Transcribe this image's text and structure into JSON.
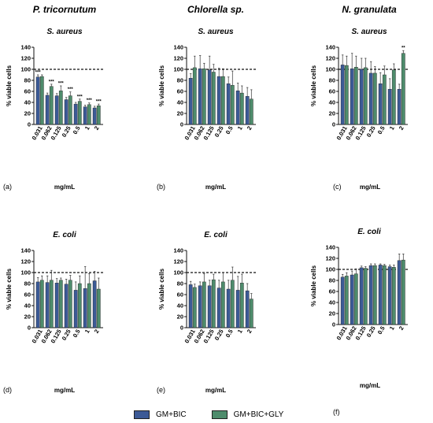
{
  "column_titles": [
    "P. tricornutum",
    "Chlorella sp.",
    "N. granulata"
  ],
  "legend": [
    {
      "label": "GM+BIC",
      "color": "#3c5a96"
    },
    {
      "label": "GM+BIC+GLY",
      "color": "#4e8c6c"
    }
  ],
  "chart_data": [
    {
      "type": "bar",
      "panel_label": "(a)",
      "subtitle": "S. aureus",
      "xlabel": "mg/mL",
      "ylabel": "% viable cells",
      "ylim": [
        0,
        140
      ],
      "yticks": [
        0,
        20,
        40,
        60,
        80,
        100,
        120,
        140
      ],
      "reference_line": 100,
      "categories": [
        "0.031",
        "0.062",
        "0.125",
        "0.25",
        "0.5",
        "1",
        "2"
      ],
      "series": [
        {
          "name": "GM+BIC",
          "values": [
            86,
            53,
            52,
            45,
            37,
            32,
            30
          ],
          "errors": [
            4,
            4,
            4,
            4,
            3,
            3,
            3
          ]
        },
        {
          "name": "GM+BIC+GLY",
          "values": [
            87,
            69,
            61,
            52,
            42,
            36,
            34
          ],
          "errors": [
            3,
            4,
            9,
            7,
            4,
            3,
            3
          ]
        }
      ],
      "significance": [
        {
          "series": "GM+BIC",
          "index": 0,
          "mark": "***"
        },
        {
          "series": "GM+BIC+GLY",
          "index": 1,
          "mark": "***"
        },
        {
          "series": "GM+BIC+GLY",
          "index": 2,
          "mark": "***"
        },
        {
          "series": "GM+BIC+GLY",
          "index": 3,
          "mark": "***"
        },
        {
          "series": "GM+BIC+GLY",
          "index": 4,
          "mark": "***"
        },
        {
          "series": "GM+BIC+GLY",
          "index": 5,
          "mark": "***"
        },
        {
          "series": "GM+BIC+GLY",
          "index": 6,
          "mark": "***"
        }
      ]
    },
    {
      "type": "bar",
      "panel_label": "(b)",
      "subtitle": "S. aureus",
      "xlabel": "mg/mL",
      "ylabel": "% viable cells",
      "ylim": [
        0,
        140
      ],
      "yticks": [
        0,
        20,
        40,
        60,
        80,
        100,
        120,
        140
      ],
      "reference_line": 100,
      "categories": [
        "0.031",
        "0.062",
        "0.125",
        "0.25",
        "0.5",
        "1",
        "2"
      ],
      "series": [
        {
          "name": "GM+BIC",
          "values": [
            84,
            101,
            99,
            87,
            74,
            61,
            51
          ],
          "errors": [
            8,
            24,
            25,
            15,
            12,
            14,
            16
          ]
        },
        {
          "name": "GM+BIC+GLY",
          "values": [
            103,
            101,
            95,
            87,
            71,
            57,
            46
          ],
          "errors": [
            21,
            10,
            14,
            14,
            26,
            13,
            17
          ]
        }
      ],
      "significance": []
    },
    {
      "type": "bar",
      "panel_label": "(c)",
      "subtitle": "S. aureus",
      "xlabel": "mg/mL",
      "ylabel": "% viable cells",
      "ylim": [
        0,
        140
      ],
      "yticks": [
        0,
        20,
        40,
        60,
        80,
        100,
        120,
        140
      ],
      "reference_line": 100,
      "categories": [
        "0.031",
        "0.062",
        "0.125",
        "0.25",
        "0.5",
        "1",
        "2"
      ],
      "series": [
        {
          "name": "GM+BIC",
          "values": [
            108,
            101,
            100,
            93,
            74,
            64,
            64
          ],
          "errors": [
            18,
            28,
            20,
            21,
            20,
            19,
            9
          ]
        },
        {
          "name": "GM+BIC+GLY",
          "values": [
            107,
            104,
            103,
            93,
            90,
            99,
            129
          ],
          "errors": [
            17,
            20,
            17,
            12,
            16,
            11,
            5
          ]
        }
      ],
      "significance": [
        {
          "series": "GM+BIC+GLY",
          "index": 6,
          "mark": "**"
        }
      ]
    },
    {
      "type": "bar",
      "panel_label": "(d)",
      "subtitle": "E. coli",
      "xlabel": "mg/mL",
      "ylabel": "% viable cells",
      "ylim": [
        0,
        140
      ],
      "yticks": [
        0,
        20,
        40,
        60,
        80,
        100,
        120,
        140
      ],
      "reference_line": 100,
      "categories": [
        "0.031",
        "0.062",
        "0.125",
        "0.25",
        "0.5",
        "1",
        "2"
      ],
      "series": [
        {
          "name": "GM+BIC",
          "values": [
            83,
            82,
            81,
            79,
            68,
            71,
            85
          ],
          "errors": [
            8,
            12,
            8,
            9,
            15,
            40,
            17
          ]
        },
        {
          "name": "GM+BIC+GLY",
          "values": [
            86,
            86,
            86,
            86,
            80,
            80,
            70
          ],
          "errors": [
            8,
            18,
            4,
            9,
            14,
            18,
            20
          ]
        }
      ],
      "significance": []
    },
    {
      "type": "bar",
      "panel_label": "(e)",
      "subtitle": "E. coli",
      "xlabel": "mg/mL",
      "ylabel": "% viable cells",
      "ylim": [
        0,
        140
      ],
      "yticks": [
        0,
        20,
        40,
        60,
        80,
        100,
        120,
        140
      ],
      "reference_line": 100,
      "categories": [
        "0.031",
        "0.062",
        "0.125",
        "0.25",
        "0.5",
        "1",
        "2"
      ],
      "series": [
        {
          "name": "GM+BIC",
          "values": [
            78,
            76,
            76,
            72,
            70,
            68,
            67
          ],
          "errors": [
            6,
            7,
            10,
            14,
            16,
            25,
            13
          ]
        },
        {
          "name": "GM+BIC+GLY",
          "values": [
            73,
            83,
            87,
            83,
            86,
            81,
            52
          ],
          "errors": [
            6,
            15,
            10,
            17,
            24,
            16,
            10
          ]
        }
      ],
      "significance": []
    },
    {
      "type": "bar",
      "panel_label": "(f)",
      "subtitle": "E. coli",
      "xlabel": "mg/mL",
      "ylabel": "% viable cells",
      "ylim": [
        0,
        140
      ],
      "yticks": [
        0,
        20,
        40,
        60,
        80,
        100,
        120,
        140
      ],
      "reference_line": 100,
      "categories": [
        "0.031",
        "0.062",
        "0.125",
        "0.25",
        "0.5",
        "1",
        "2"
      ],
      "series": [
        {
          "name": "GM+BIC",
          "values": [
            86,
            90,
            103,
            107,
            108,
            105,
            116
          ],
          "errors": [
            5,
            7,
            3,
            3,
            2,
            3,
            12
          ]
        },
        {
          "name": "GM+BIC+GLY",
          "values": [
            88,
            92,
            102,
            107,
            107,
            104,
            117
          ],
          "errors": [
            6,
            9,
            3,
            3,
            2,
            4,
            11
          ]
        }
      ],
      "significance": []
    }
  ]
}
